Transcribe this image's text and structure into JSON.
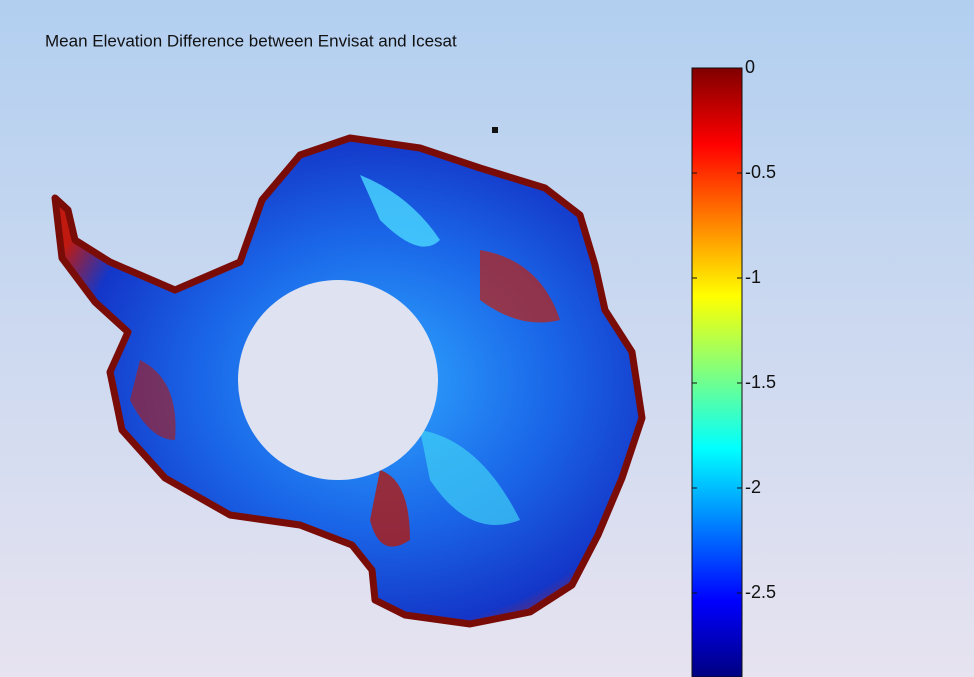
{
  "chart_data": {
    "type": "heatmap",
    "title": "Mean Elevation Difference between Envisat and Icesat",
    "colorbar": {
      "clim": [
        -2.9,
        0
      ],
      "ticks": [
        0,
        -0.5,
        -1,
        -1.5,
        -2,
        -2.5
      ]
    }
  }
}
